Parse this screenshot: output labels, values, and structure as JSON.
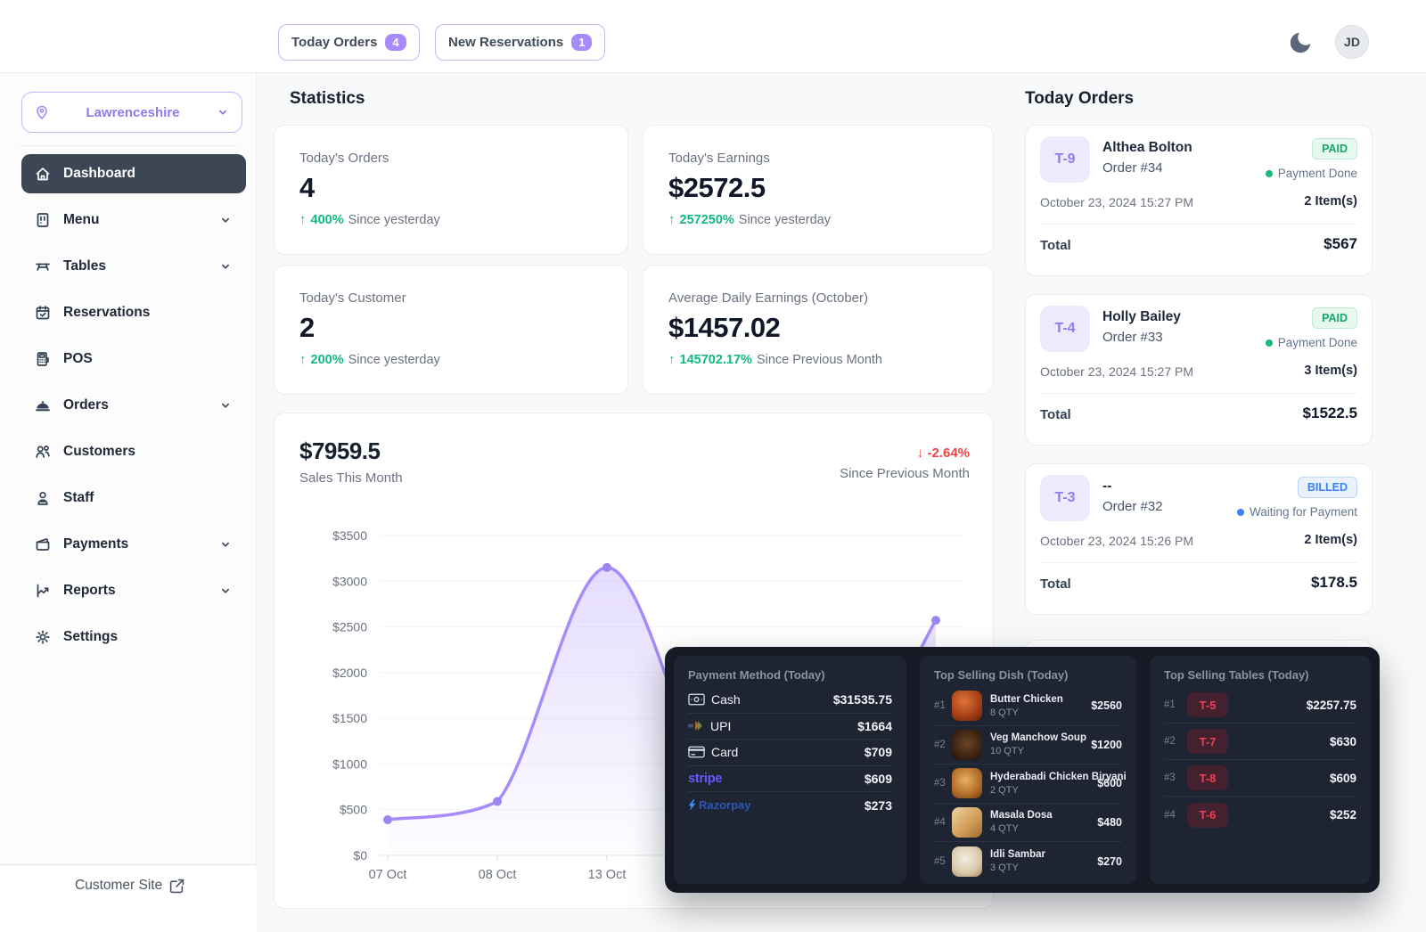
{
  "topbar": {
    "today_orders_label": "Today Orders",
    "today_orders_count": "4",
    "new_reservations_label": "New Reservations",
    "new_reservations_count": "1",
    "avatar_initials": "JD"
  },
  "sidebar": {
    "location": "Lawrenceshire",
    "items": [
      {
        "label": "Dashboard",
        "active": true
      },
      {
        "label": "Menu",
        "expandable": true
      },
      {
        "label": "Tables",
        "expandable": true
      },
      {
        "label": "Reservations"
      },
      {
        "label": "POS"
      },
      {
        "label": "Orders",
        "expandable": true
      },
      {
        "label": "Customers"
      },
      {
        "label": "Staff"
      },
      {
        "label": "Payments",
        "expandable": true
      },
      {
        "label": "Reports",
        "expandable": true
      },
      {
        "label": "Settings"
      }
    ],
    "footer_link": "Customer Site"
  },
  "stats": {
    "heading": "Statistics",
    "cards": [
      {
        "title": "Today's Orders",
        "value": "4",
        "delta": "400%",
        "period": "Since yesterday"
      },
      {
        "title": "Today's Earnings",
        "value": "$2572.5",
        "delta": "257250%",
        "period": "Since yesterday"
      },
      {
        "title": "Today's Customer",
        "value": "2",
        "delta": "200%",
        "period": "Since yesterday"
      },
      {
        "title": "Average Daily Earnings (October)",
        "value": "$1457.02",
        "delta": "145702.17%",
        "period": "Since Previous Month"
      }
    ]
  },
  "chart_data": {
    "type": "line",
    "summary_value": "$7959.5",
    "summary_label": "Sales This Month",
    "delta": "-2.64%",
    "delta_direction": "down",
    "delta_label": "Since Previous Month",
    "x_tick_labels_visible": [
      "07 Oct",
      "08 Oct",
      "13 Oct"
    ],
    "values_est": [
      390,
      590,
      3150,
      700,
      557,
      2572.5
    ],
    "y_ticks": [
      "$3500",
      "$3000",
      "$2500",
      "$2000",
      "$1500",
      "$1000",
      "$500",
      "$0"
    ],
    "ylim": [
      0,
      3500
    ],
    "line_color": "#a78bfa",
    "grid": true,
    "legend": false
  },
  "orders": {
    "heading": "Today Orders",
    "cards": [
      {
        "table": "T-9",
        "name": "Althea Bolton",
        "order": "Order #34",
        "status": "PAID",
        "status_note": "Payment Done",
        "date": "October 23, 2024 15:27 PM",
        "items": "2 Item(s)",
        "total_label": "Total",
        "total": "$567"
      },
      {
        "table": "T-4",
        "name": "Holly Bailey",
        "order": "Order #33",
        "status": "PAID",
        "status_note": "Payment Done",
        "date": "October 23, 2024 15:27 PM",
        "items": "3 Item(s)",
        "total_label": "Total",
        "total": "$1522.5"
      },
      {
        "table": "T-3",
        "name": "--",
        "order": "Order #32",
        "status": "BILLED",
        "status_note": "Waiting for Payment",
        "date": "October 23, 2024 15:26 PM",
        "items": "2 Item(s)",
        "total_label": "Total",
        "total": "$178.5"
      }
    ]
  },
  "panels": {
    "payment": {
      "title": "Payment Method (Today)",
      "rows": [
        {
          "method": "Cash",
          "amount": "$31535.75"
        },
        {
          "method": "UPI",
          "amount": "$1664"
        },
        {
          "method": "Card",
          "amount": "$709"
        },
        {
          "method": "stripe",
          "amount": "$609"
        },
        {
          "method": "Razorpay",
          "amount": "$273"
        }
      ]
    },
    "dishes": {
      "title": "Top Selling Dish (Today)",
      "rows": [
        {
          "rank": "#1",
          "name": "Butter Chicken",
          "qty": "8 QTY",
          "amount": "$2560"
        },
        {
          "rank": "#2",
          "name": "Veg Manchow Soup",
          "qty": "10 QTY",
          "amount": "$1200"
        },
        {
          "rank": "#3",
          "name": "Hyderabadi Chicken Biryani",
          "qty": "2 QTY",
          "amount": "$600"
        },
        {
          "rank": "#4",
          "name": "Masala Dosa",
          "qty": "4 QTY",
          "amount": "$480"
        },
        {
          "rank": "#5",
          "name": "Idli Sambar",
          "qty": "3 QTY",
          "amount": "$270"
        }
      ]
    },
    "tables": {
      "title": "Top Selling Tables (Today)",
      "rows": [
        {
          "rank": "#1",
          "table": "T-5",
          "amount": "$2257.75"
        },
        {
          "rank": "#2",
          "table": "T-7",
          "amount": "$630"
        },
        {
          "rank": "#3",
          "table": "T-8",
          "amount": "$609"
        },
        {
          "rank": "#4",
          "table": "T-6",
          "amount": "$252"
        }
      ]
    }
  },
  "colors": {
    "accent_purple": "#8b5cf6",
    "line_purple": "#a78bfa",
    "green": "#10b981",
    "red": "#ef4444",
    "blue": "#3b82f6",
    "dark_panel": "#1e2431",
    "table_badge_red": "#ef4056"
  }
}
